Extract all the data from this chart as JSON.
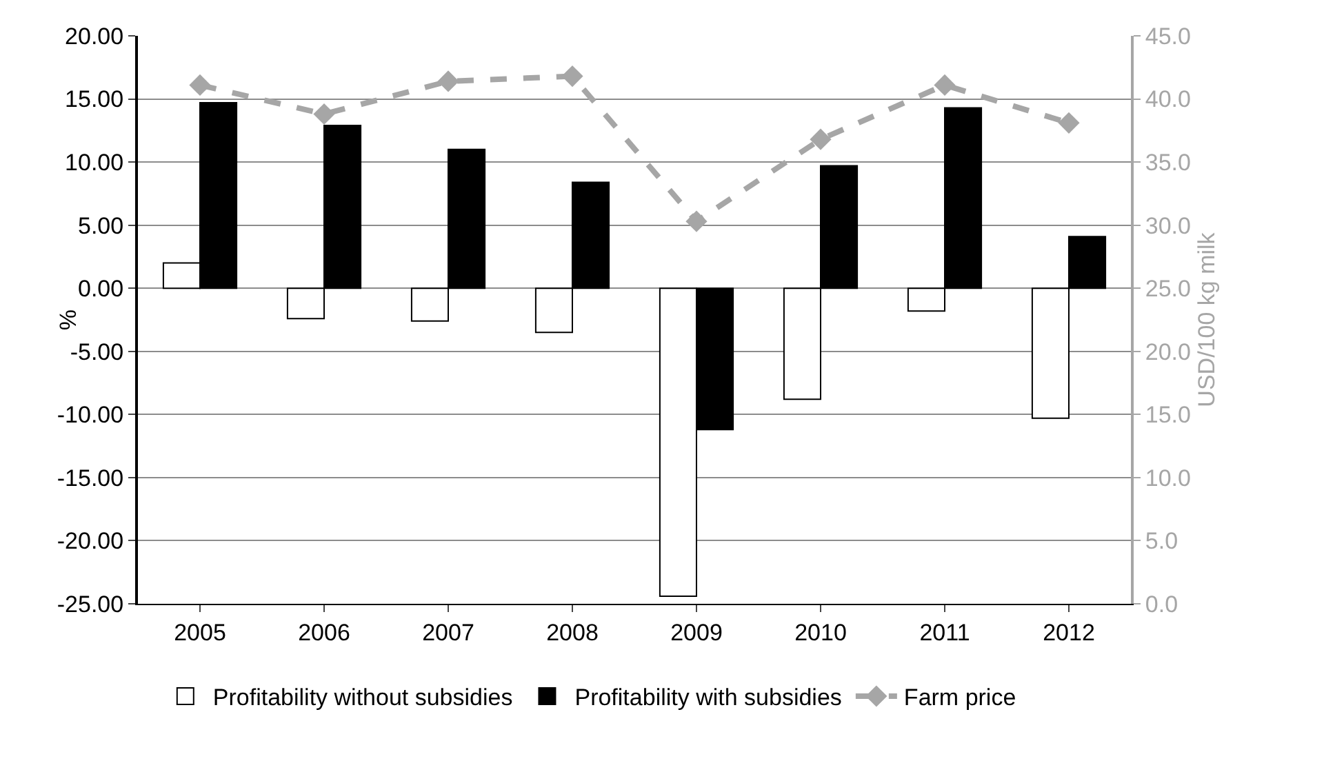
{
  "chart_data": {
    "type": "bar",
    "categories": [
      "2005",
      "2006",
      "2007",
      "2008",
      "2009",
      "2010",
      "2011",
      "2012"
    ],
    "series": [
      {
        "name": "Profitability without subsidies",
        "color": "#ffffff",
        "values": [
          2.0,
          -2.4,
          -2.6,
          -3.5,
          -24.4,
          -8.8,
          -1.8,
          -10.3
        ]
      },
      {
        "name": "Profitability with subsidies",
        "color": "#000000",
        "values": [
          14.7,
          12.9,
          11.0,
          8.4,
          -11.2,
          9.7,
          14.3,
          4.1
        ]
      },
      {
        "name": "Farm price",
        "type": "line",
        "axis": "y2",
        "color": "#a6a6a6",
        "line_style": "dashed",
        "marker": "diamond",
        "values": [
          41.1,
          38.8,
          41.4,
          41.8,
          30.3,
          36.8,
          41.1,
          38.1
        ]
      }
    ],
    "ylabel": "%",
    "y2label": "USD/100 kg milk",
    "ylim": [
      -25,
      20
    ],
    "yticks": [
      {
        "value": -25,
        "label": "-25.00"
      },
      {
        "value": -20,
        "label": "-20.00"
      },
      {
        "value": -15,
        "label": "-15.00"
      },
      {
        "value": -10,
        "label": "-10.00"
      },
      {
        "value": -5,
        "label": "-5.00"
      },
      {
        "value": 0,
        "label": "0.00"
      },
      {
        "value": 5,
        "label": "5.00"
      },
      {
        "value": 10,
        "label": "10.00"
      },
      {
        "value": 15,
        "label": "15.00"
      },
      {
        "value": 20,
        "label": "20.00"
      }
    ],
    "y2lim": [
      0,
      45
    ],
    "y2ticks": [
      {
        "value": 0,
        "label": "0.0"
      },
      {
        "value": 5,
        "label": "5.0"
      },
      {
        "value": 10,
        "label": "10.0"
      },
      {
        "value": 15,
        "label": "15.0"
      },
      {
        "value": 20,
        "label": "20.0"
      },
      {
        "value": 25,
        "label": "25.0"
      },
      {
        "value": 30,
        "label": "30.0"
      },
      {
        "value": 35,
        "label": "35.0"
      },
      {
        "value": 40,
        "label": "40.0"
      },
      {
        "value": 45,
        "label": "45.0"
      }
    ],
    "grid": "y",
    "legend": "bottom"
  }
}
